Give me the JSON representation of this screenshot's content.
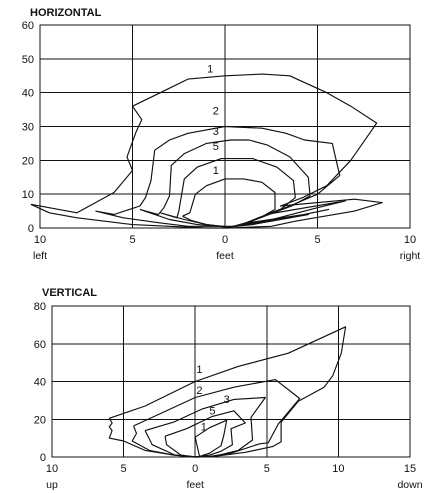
{
  "chart_data": [
    {
      "type": "line",
      "title": "HORIZONTAL",
      "xlabel": "feet",
      "x_end_labels": [
        "left",
        "right"
      ],
      "xlim": [
        -10,
        10
      ],
      "ylim": [
        0,
        60
      ],
      "x_ticks": [
        "10",
        "5",
        "0",
        "5",
        "10"
      ],
      "y_ticks": [
        "0",
        "10",
        "20",
        "30",
        "40",
        "50",
        "60"
      ],
      "grid": true,
      "series": [
        {
          "name": "1",
          "x": [
            -10.5,
            -8,
            -6,
            -5,
            -5.3,
            -4.8,
            -4.5,
            -5.0,
            -3.5,
            -2,
            0,
            2,
            3.5,
            5.5,
            6.8,
            8.2,
            6.8,
            5.5,
            4.2,
            3.0,
            7.0,
            8.5,
            7.0,
            3.8,
            2.5,
            0.2,
            -1.0,
            -3.0,
            -5.0,
            -6.5,
            -8.0,
            -9.5,
            -10.5
          ],
          "y": [
            7.0,
            4.5,
            10.5,
            17.0,
            21.0,
            28.5,
            32.0,
            36.0,
            40.0,
            44.0,
            45.0,
            45.5,
            45.0,
            40.0,
            36.0,
            31.0,
            20.0,
            12.5,
            9.0,
            6.5,
            8.5,
            7.5,
            5.0,
            2.0,
            0.5,
            0.0,
            0.0,
            0.5,
            1.0,
            2.0,
            3.0,
            4.5,
            7.0
          ]
        },
        {
          "name": "2",
          "x": [
            -7.0,
            -6.0,
            -4.6,
            -4.3,
            -4.0,
            -3.8,
            -3.0,
            -2.0,
            0,
            2,
            3.3,
            4.3,
            5.8,
            6.2,
            5.0,
            3.5,
            2.2,
            6.5,
            5.0,
            2.2,
            0.5,
            -2.0,
            -3.5,
            -5.5,
            -7.0
          ],
          "y": [
            5.0,
            4.0,
            6.5,
            9.0,
            14.0,
            23.0,
            26.0,
            28.0,
            30.0,
            29.5,
            28.0,
            26.0,
            25.0,
            15.5,
            10.0,
            6.5,
            4.0,
            8.0,
            6.0,
            2.0,
            0.5,
            0.5,
            1.5,
            3.0,
            5.0
          ]
        },
        {
          "name": "3",
          "x": [
            -4.6,
            -3.6,
            -3.3,
            -3.0,
            -2.9,
            -2.2,
            -1.0,
            0.3,
            1.3,
            2.3,
            3.5,
            4.5,
            4.6,
            3.6,
            2.3,
            1.2,
            4.3,
            5.6,
            3.4,
            1.5,
            0.2,
            -1.5,
            -3.0,
            -4.6
          ],
          "y": [
            5.5,
            4.0,
            6.0,
            9.5,
            18.5,
            22.0,
            25.0,
            26.0,
            26.0,
            24.5,
            21.0,
            15.0,
            9.5,
            6.5,
            3.8,
            1.5,
            4.0,
            5.5,
            3.0,
            1.0,
            0.3,
            1.0,
            2.5,
            5.5
          ]
        },
        {
          "name": "5",
          "x": [
            -3.5,
            -2.6,
            -2.5,
            -2.2,
            -1.5,
            -0.2,
            1.5,
            2.8,
            3.7,
            3.8,
            3.0,
            1.8,
            0.9,
            3.8,
            4.5,
            2.5,
            1.0,
            0.2,
            -1.0,
            -2.2,
            -3.5
          ],
          "y": [
            4.5,
            3.0,
            5.0,
            14.5,
            18.0,
            20.5,
            20.5,
            18.0,
            14.0,
            9.0,
            5.5,
            3.0,
            1.0,
            3.5,
            4.0,
            2.0,
            0.8,
            0.3,
            1.0,
            2.5,
            4.5
          ]
        },
        {
          "name": "1",
          "x": [
            -2.3,
            -1.9,
            -1.6,
            -1.0,
            0.0,
            1.0,
            2.0,
            2.7,
            2.7,
            1.9,
            1.1,
            0.5,
            0.2,
            0.0,
            -1.0,
            -1.8,
            -2.3
          ],
          "y": [
            3.5,
            4.5,
            10.0,
            12.5,
            14.5,
            14.5,
            13.5,
            10.5,
            5.5,
            3.0,
            1.5,
            0.6,
            0.2,
            0.3,
            1.0,
            2.2,
            3.5
          ]
        }
      ]
    },
    {
      "type": "line",
      "title": "VERTICAL",
      "xlabel": "feet",
      "x_end_labels": [
        "up",
        "down"
      ],
      "xlim": [
        -10,
        15
      ],
      "ylim": [
        0,
        80
      ],
      "x_ticks": [
        "10",
        "5",
        "0",
        "5",
        "10",
        "15"
      ],
      "y_ticks": [
        "0",
        "20",
        "40",
        "60",
        "80"
      ],
      "grid": true,
      "series": [
        {
          "name": "1",
          "x": [
            -6.0,
            -3.5,
            0.0,
            3.0,
            6.5,
            10.5,
            10.2,
            9.6,
            9.0,
            7.2,
            6.0,
            6.0,
            5.4,
            3.5,
            1.5,
            0.2,
            -1.5,
            -3.5,
            -5.0,
            -6.0,
            -5.8,
            -6.0,
            -5.8,
            -6.0
          ],
          "y": [
            20.5,
            27.0,
            40.0,
            48.0,
            55.0,
            69.0,
            55.0,
            43.0,
            37.0,
            29.5,
            18.5,
            8.0,
            5.5,
            2.5,
            0.5,
            0.0,
            1.0,
            3.5,
            8.5,
            10.0,
            14.0,
            16.0,
            18.0,
            20.5
          ]
        },
        {
          "name": "2",
          "x": [
            -4.3,
            -3.0,
            0.0,
            2.7,
            5.6,
            7.3,
            5.8,
            5.1,
            4.5,
            2.5,
            1.0,
            0.0,
            -1.5,
            -3.2,
            -4.4,
            -4.1,
            -4.3
          ],
          "y": [
            16.5,
            21.0,
            31.5,
            37.0,
            41.0,
            31.0,
            17.5,
            7.5,
            7.0,
            2.0,
            0.3,
            0.0,
            1.0,
            3.5,
            8.5,
            12.5,
            16.5
          ]
        },
        {
          "name": "3",
          "x": [
            -3.5,
            -1.5,
            0.5,
            2.7,
            4.9,
            3.9,
            4.0,
            3.0,
            1.3,
            0.0,
            -1.4,
            -3.0,
            -3.5
          ],
          "y": [
            14.0,
            18.5,
            25.5,
            30.5,
            31.5,
            21.0,
            9.0,
            3.5,
            0.3,
            0.0,
            1.0,
            6.5,
            14.0
          ]
        },
        {
          "name": "5",
          "x": [
            -2.1,
            -0.6,
            1.2,
            2.7,
            3.5,
            2.5,
            2.6,
            1.8,
            1.0,
            0.0,
            -1.0,
            -2.0,
            -2.1
          ],
          "y": [
            11.0,
            15.0,
            21.5,
            24.5,
            18.0,
            15.0,
            6.5,
            3.0,
            1.0,
            0.0,
            1.0,
            6.5,
            11.0
          ]
        },
        {
          "name": "1",
          "x": [
            0.0,
            1.0,
            2.2,
            2.0,
            1.8,
            1.0,
            0.3,
            0.0
          ],
          "y": [
            10.5,
            15.5,
            19.5,
            11.5,
            6.0,
            2.0,
            0.3,
            10.5
          ]
        }
      ]
    }
  ]
}
